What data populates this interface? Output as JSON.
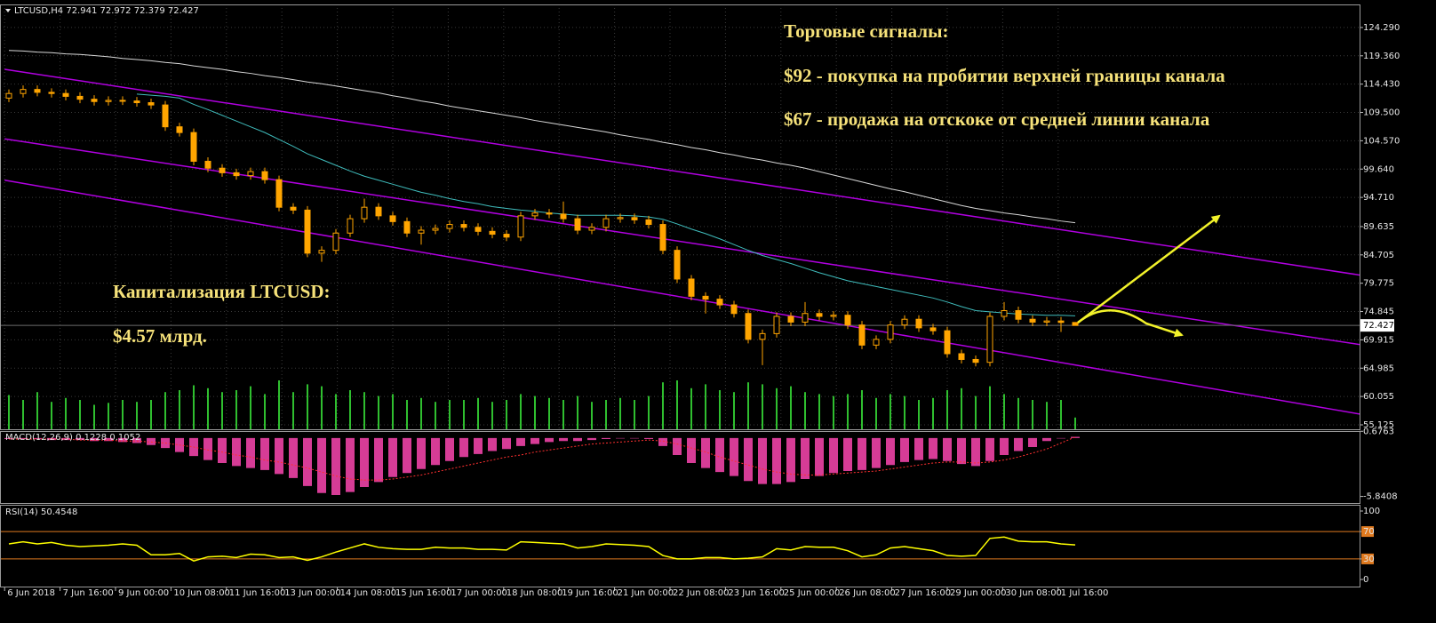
{
  "chart_data": [
    {
      "type": "candlestick",
      "title": "LTCUSD,H4",
      "color": "#ffa500",
      "grid": true,
      "open": [
        112.0,
        112.8,
        113.5,
        113.0,
        112.8,
        112.3,
        111.8,
        111.4,
        111.6,
        111.5,
        111.2,
        110.8,
        107.0,
        106.0,
        101.0,
        99.8,
        99.0,
        98.5,
        99.2,
        97.8,
        93.0,
        92.5,
        85.0,
        85.5,
        88.5,
        91.0,
        93.0,
        91.5,
        90.5,
        88.5,
        89.0,
        89.3,
        90.0,
        89.5,
        88.8,
        88.3,
        87.8,
        91.5,
        92.0,
        91.8,
        91.0,
        89.0,
        89.5,
        91.0,
        91.2,
        90.8,
        90.0,
        85.5,
        80.5,
        77.5,
        77.0,
        76.0,
        74.5,
        70.0,
        71.0,
        74.0,
        73.0,
        74.5,
        74.0,
        74.2,
        72.5,
        69.0,
        70.0,
        72.5,
        73.5,
        72.0,
        71.5,
        67.5,
        66.5,
        66.0,
        74.0,
        75.0,
        73.5,
        73.0,
        73.2,
        72.941
      ],
      "high": [
        113.5,
        114.2,
        114.2,
        113.7,
        113.5,
        113.0,
        112.5,
        112.3,
        112.3,
        112.2,
        111.9,
        111.5,
        107.7,
        106.7,
        101.7,
        100.5,
        99.7,
        99.9,
        99.9,
        98.5,
        93.7,
        93.2,
        86.2,
        89.2,
        91.7,
        94.5,
        93.7,
        92.2,
        91.2,
        89.7,
        90.0,
        90.7,
        90.7,
        90.2,
        89.5,
        89.0,
        92.2,
        92.7,
        92.7,
        94.0,
        91.7,
        90.2,
        91.7,
        91.9,
        91.9,
        91.5,
        90.7,
        86.2,
        81.2,
        78.2,
        77.7,
        76.7,
        75.2,
        71.7,
        74.7,
        74.7,
        76.5,
        75.2,
        74.9,
        74.9,
        73.2,
        70.7,
        73.2,
        74.2,
        74.2,
        72.7,
        72.2,
        68.2,
        67.2,
        74.7,
        76.5,
        75.7,
        74.2,
        73.9,
        73.9,
        72.972
      ],
      "low": [
        111.3,
        112.1,
        112.3,
        112.1,
        111.6,
        111.1,
        110.7,
        110.7,
        110.8,
        110.5,
        110.1,
        106.3,
        105.3,
        100.3,
        99.1,
        98.3,
        97.8,
        97.8,
        97.1,
        92.3,
        91.8,
        84.3,
        83.5,
        84.8,
        87.8,
        90.3,
        90.8,
        89.8,
        87.8,
        86.5,
        88.3,
        88.6,
        88.8,
        88.1,
        87.6,
        87.1,
        87.1,
        90.8,
        91.1,
        90.3,
        88.3,
        88.3,
        88.8,
        90.3,
        90.1,
        89.3,
        84.8,
        79.8,
        76.8,
        74.5,
        75.3,
        73.8,
        69.3,
        65.5,
        70.3,
        72.3,
        72.3,
        73.3,
        73.3,
        71.8,
        68.3,
        68.3,
        69.3,
        71.8,
        71.3,
        70.8,
        66.8,
        65.8,
        65.3,
        65.3,
        73.3,
        72.8,
        72.3,
        72.3,
        71.3,
        72.379
      ],
      "close": [
        112.8,
        113.5,
        113.0,
        112.8,
        112.3,
        111.8,
        111.4,
        111.6,
        111.5,
        111.2,
        110.8,
        107.0,
        106.0,
        101.0,
        99.8,
        99.0,
        98.5,
        99.2,
        97.8,
        93.0,
        92.5,
        85.0,
        85.5,
        88.5,
        91.0,
        93.0,
        91.5,
        90.5,
        88.5,
        89.0,
        89.3,
        90.0,
        89.5,
        88.8,
        88.3,
        87.8,
        91.5,
        92.0,
        91.8,
        91.0,
        89.0,
        89.5,
        91.0,
        91.2,
        90.8,
        90.0,
        85.5,
        80.5,
        77.5,
        77.0,
        76.0,
        74.5,
        70.0,
        71.0,
        74.0,
        73.0,
        74.5,
        74.0,
        74.2,
        72.5,
        69.0,
        70.0,
        72.5,
        73.5,
        72.0,
        71.5,
        67.5,
        66.5,
        66.0,
        74.0,
        75.0,
        73.5,
        73.0,
        73.2,
        72.941,
        72.427
      ],
      "moving_averages": [
        {
          "color": "#3fbcbc",
          "values": [
            null,
            null,
            null,
            null,
            null,
            null,
            null,
            null,
            null,
            112.7,
            112.5,
            112.3,
            112.0,
            110.9,
            110.0,
            109.0,
            108.0,
            107.0,
            106.0,
            104.8,
            103.6,
            102.3,
            101.3,
            100.3,
            99.3,
            98.4,
            97.7,
            97.0,
            96.3,
            95.6,
            95.1,
            94.5,
            94.0,
            93.6,
            93.1,
            92.8,
            92.5,
            92.3,
            92.0,
            91.8,
            91.6,
            91.6,
            91.6,
            91.6,
            91.5,
            91.3,
            90.9,
            90.1,
            89.2,
            88.4,
            87.5,
            86.5,
            85.5,
            84.6,
            83.9,
            83.2,
            82.4,
            81.6,
            80.9,
            80.2,
            79.7,
            79.2,
            78.7,
            78.2,
            77.7,
            77.2,
            76.5,
            75.7,
            75.0,
            74.8,
            74.6,
            74.4,
            74.3,
            74.2,
            74.2,
            74.1
          ]
        },
        {
          "color": "#d8d8d8",
          "values": [
            120.3,
            120.2,
            120.0,
            119.9,
            119.7,
            119.6,
            119.4,
            119.2,
            118.9,
            118.7,
            118.5,
            118.2,
            118.0,
            117.6,
            117.3,
            117.0,
            116.6,
            116.3,
            115.9,
            115.6,
            115.2,
            114.8,
            114.5,
            114.1,
            113.7,
            113.3,
            112.9,
            112.4,
            112.0,
            111.5,
            111.1,
            110.6,
            110.2,
            109.8,
            109.4,
            109.0,
            108.6,
            108.1,
            107.7,
            107.3,
            106.9,
            106.5,
            106.1,
            105.6,
            105.2,
            104.8,
            104.3,
            103.9,
            103.4,
            103.0,
            102.5,
            102.1,
            101.6,
            101.2,
            100.7,
            100.3,
            99.8,
            99.2,
            98.6,
            98.0,
            97.4,
            96.8,
            96.2,
            95.7,
            95.1,
            94.5,
            93.9,
            93.3,
            92.8,
            92.4,
            92.0,
            91.7,
            91.3,
            91.0,
            90.6,
            90.3
          ]
        }
      ],
      "volume": {
        "color": "#2fbf2f",
        "values": [
          35,
          30,
          38,
          28,
          32,
          30,
          25,
          27,
          30,
          28,
          30,
          38,
          40,
          45,
          42,
          38,
          40,
          44,
          36,
          50,
          38,
          46,
          44,
          36,
          40,
          38,
          34,
          36,
          30,
          32,
          28,
          30,
          30,
          32,
          28,
          30,
          36,
          34,
          32,
          30,
          34,
          28,
          30,
          32,
          30,
          34,
          48,
          50,
          42,
          46,
          40,
          38,
          48,
          46,
          42,
          44,
          38,
          36,
          34,
          36,
          40,
          32,
          36,
          34,
          30,
          32,
          40,
          42,
          34,
          44,
          36,
          32,
          30,
          28,
          30,
          12
        ]
      },
      "channel": {
        "color": "#b000e0",
        "lines": [
          [
            -0.3,
            117.0,
            95,
            81.2
          ],
          [
            -0.3,
            104.9,
            95,
            69.1
          ],
          [
            -0.3,
            97.7,
            95,
            57.0
          ]
        ]
      },
      "xlim": [
        -0.625,
        95
      ],
      "xticks": [
        {
          "value": -0.3,
          "label": "6 Jun 2018"
        },
        {
          "value": 3.6,
          "label": "7 Jun 16:00"
        },
        {
          "value": 7.5,
          "label": "9 Jun 00:00"
        },
        {
          "value": 11.4,
          "label": "10 Jun 08:00"
        },
        {
          "value": 15.3,
          "label": "11 Jun 16:00"
        },
        {
          "value": 19.2,
          "label": "13 Jun 00:00"
        },
        {
          "value": 23.1,
          "label": "14 Jun 08:00"
        },
        {
          "value": 27.0,
          "label": "15 Jun 16:00"
        },
        {
          "value": 30.9,
          "label": "17 Jun 00:00"
        },
        {
          "value": 34.8,
          "label": "18 Jun 08:00"
        },
        {
          "value": 38.7,
          "label": "19 Jun 16:00"
        },
        {
          "value": 42.6,
          "label": "21 Jun 00:00"
        },
        {
          "value": 46.5,
          "label": "22 Jun 08:00"
        },
        {
          "value": 50.4,
          "label": "23 Jun 16:00"
        },
        {
          "value": 54.3,
          "label": "25 Jun 00:00"
        },
        {
          "value": 58.2,
          "label": "26 Jun 08:00"
        },
        {
          "value": 62.1,
          "label": "27 Jun 16:00"
        },
        {
          "value": 66.0,
          "label": "29 Jun 00:00"
        },
        {
          "value": 69.9,
          "label": "30 Jun 08:00"
        },
        {
          "value": 73.8,
          "label": "1 Jul 16:00"
        }
      ],
      "ylim": [
        54.35,
        128.3
      ],
      "yticks": [
        {
          "value": 124.29,
          "label": "124.290"
        },
        {
          "value": 119.36,
          "label": "119.360"
        },
        {
          "value": 114.43,
          "label": "114.430"
        },
        {
          "value": 109.5,
          "label": "109.500"
        },
        {
          "value": 104.57,
          "label": "104.570"
        },
        {
          "value": 99.64,
          "label": "99.640"
        },
        {
          "value": 94.71,
          "label": "94.710"
        },
        89.635,
        84.705,
        79.775,
        74.845,
        69.915,
        64.985,
        60.055,
        55.125
      ],
      "annotations": [
        "Торговые сигналы:",
        "$92 - покупка на пробитии верхней границы канала",
        "$67 - продажа на отскоке от средней линии канала",
        "Капитализация LTCUSD:",
        "$4.57 млрд."
      ]
    },
    {
      "type": "macd",
      "title": "MACD(12,26,9)",
      "histogram": {
        "color": "#d63c96",
        "values": [
          -0.1,
          -0.1,
          -0.1,
          -0.2,
          -0.2,
          -0.2,
          -0.3,
          -0.3,
          -0.4,
          -0.5,
          -0.7,
          -1.0,
          -1.4,
          -1.8,
          -2.2,
          -2.5,
          -2.8,
          -3.0,
          -3.2,
          -3.6,
          -4.0,
          -4.8,
          -5.5,
          -5.7,
          -5.4,
          -4.9,
          -4.4,
          -3.9,
          -3.5,
          -3.1,
          -2.7,
          -2.3,
          -1.9,
          -1.6,
          -1.3,
          -1.1,
          -0.8,
          -0.6,
          -0.4,
          -0.3,
          -0.3,
          -0.2,
          -0.1,
          0.0,
          0.0,
          -0.1,
          -0.8,
          -1.7,
          -2.5,
          -3.0,
          -3.4,
          -3.8,
          -4.3,
          -4.6,
          -4.6,
          -4.4,
          -4.1,
          -3.8,
          -3.5,
          -3.3,
          -3.2,
          -3.0,
          -2.7,
          -2.4,
          -2.2,
          -2.1,
          -2.3,
          -2.6,
          -2.8,
          -2.3,
          -1.7,
          -1.3,
          -0.9,
          -0.3,
          0.0,
          0.1228
        ]
      },
      "signal": {
        "color": "#ff3030",
        "values": [
          -0.1,
          -0.1,
          -0.1,
          -0.1,
          -0.1,
          -0.2,
          -0.2,
          -0.2,
          -0.3,
          -0.3,
          -0.4,
          -0.5,
          -0.7,
          -0.9,
          -1.2,
          -1.4,
          -1.7,
          -1.9,
          -2.2,
          -2.4,
          -2.7,
          -3.0,
          -3.4,
          -3.8,
          -4.1,
          -4.2,
          -4.2,
          -4.1,
          -3.9,
          -3.7,
          -3.4,
          -3.1,
          -2.8,
          -2.5,
          -2.2,
          -1.9,
          -1.7,
          -1.4,
          -1.2,
          -1.0,
          -0.8,
          -0.6,
          -0.5,
          -0.4,
          -0.3,
          -0.2,
          -0.3,
          -0.6,
          -1.0,
          -1.4,
          -1.9,
          -2.3,
          -2.7,
          -3.1,
          -3.4,
          -3.6,
          -3.7,
          -3.7,
          -3.6,
          -3.5,
          -3.4,
          -3.3,
          -3.1,
          -2.9,
          -2.7,
          -2.5,
          -2.4,
          -2.4,
          -2.5,
          -2.4,
          -2.2,
          -1.9,
          -1.5,
          -1.1,
          -0.5,
          0.1052
        ]
      },
      "ylim": [
        -6.5,
        0.7
      ],
      "yticks": [
        0.6763,
        -5.8408
      ]
    },
    {
      "type": "rsi",
      "title": "RSI(14)",
      "color": "#ffff00",
      "levels_color": "#e07a1f",
      "values": [
        52,
        55,
        52,
        54,
        50,
        48,
        49,
        50,
        52,
        50,
        36,
        36,
        38,
        27,
        33,
        34,
        32,
        37,
        36,
        32,
        33,
        28,
        33,
        40,
        46,
        52,
        47,
        45,
        44,
        44,
        47,
        46,
        46,
        44,
        44,
        43,
        55,
        54,
        53,
        52,
        46,
        48,
        52,
        51,
        50,
        48,
        35,
        30,
        30,
        32,
        32,
        30,
        31,
        33,
        45,
        43,
        48,
        47,
        47,
        42,
        33,
        36,
        46,
        48,
        45,
        42,
        35,
        34,
        35,
        60,
        62,
        56,
        55,
        55,
        52,
        50.4548
      ],
      "levels": [
        70,
        30
      ],
      "ylim": [
        -10.4,
        109.1
      ],
      "yticks": [
        100,
        70,
        30,
        0
      ]
    }
  ]
}
